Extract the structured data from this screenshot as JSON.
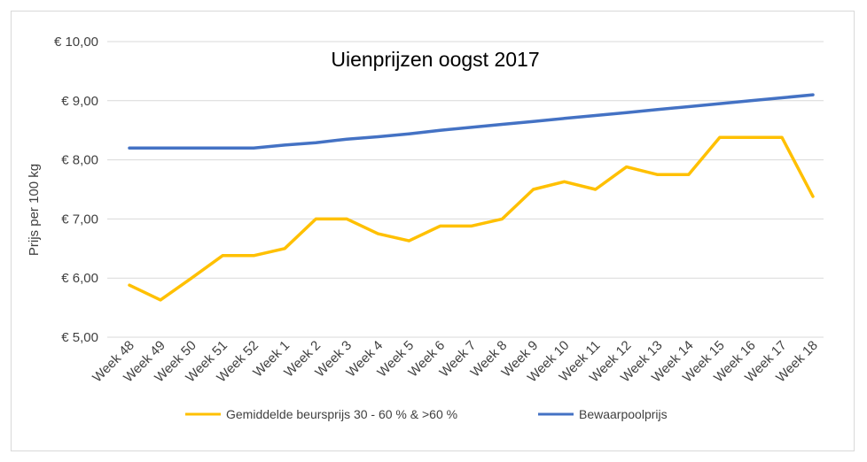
{
  "chart_data": {
    "type": "line",
    "title": "Uienprijzen oogst 2017",
    "xlabel": "",
    "ylabel": "Prijs per 100 kg",
    "ylim": [
      5,
      10
    ],
    "y_ticks": [
      "€ 5,00",
      "€ 6,00",
      "€ 7,00",
      "€ 8,00",
      "€ 9,00",
      "€ 10,00"
    ],
    "y_tick_values": [
      5,
      6,
      7,
      8,
      9,
      10
    ],
    "grid": true,
    "legend_position": "bottom",
    "categories": [
      "Week 48",
      "Week 49",
      "Week 50",
      "Week 51",
      "Week 52",
      "Week 1",
      "Week 2",
      "Week 3",
      "Week 4",
      "Week 5",
      "Week 6",
      "Week 7",
      "Week 8",
      "Week 9",
      "Week 10",
      "Week 11",
      "Week 12",
      "Week 13",
      "Week 14",
      "Week 15",
      "Week 16",
      "Week 17",
      "Week 18"
    ],
    "series": [
      {
        "name": "Gemiddelde beursprijs 30 - 60 % & >60 %",
        "color": "#FFC000",
        "values": [
          5.88,
          5.63,
          6.0,
          6.38,
          6.38,
          6.5,
          7.0,
          7.0,
          6.75,
          6.63,
          6.88,
          6.88,
          7.0,
          7.5,
          7.63,
          7.5,
          7.88,
          7.75,
          7.75,
          8.38,
          8.38,
          8.38,
          7.38
        ]
      },
      {
        "name": "Bewaarpoolprijs",
        "color": "#4472C4",
        "values": [
          8.2,
          8.2,
          8.2,
          8.2,
          8.2,
          8.25,
          8.29,
          8.35,
          8.39,
          8.44,
          8.5,
          8.55,
          8.6,
          8.65,
          8.7,
          8.75,
          8.8,
          8.85,
          8.9,
          8.95,
          9.0,
          9.05,
          9.1
        ]
      }
    ]
  }
}
